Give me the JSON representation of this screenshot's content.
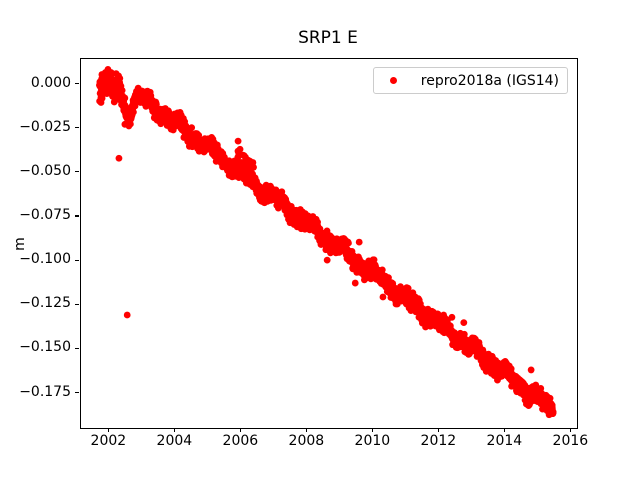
{
  "chart_data": {
    "type": "scatter",
    "title": "SRP1 E",
    "ylabel": "m",
    "xlabel": "",
    "grid": false,
    "legend_position": "upper right",
    "legend": [
      {
        "label": "repro2018a (IGS14)",
        "color": "#ff0000",
        "marker": "dot"
      }
    ],
    "xlim": [
      2001.14,
      2016.17
    ],
    "ylim": [
      -0.1945,
      0.0145
    ],
    "x_ticks": [
      {
        "v": 2002,
        "label": "2002"
      },
      {
        "v": 2004,
        "label": "2004"
      },
      {
        "v": 2006,
        "label": "2006"
      },
      {
        "v": 2008,
        "label": "2008"
      },
      {
        "v": 2010,
        "label": "2010"
      },
      {
        "v": 2012,
        "label": "2012"
      },
      {
        "v": 2014,
        "label": "2014"
      },
      {
        "v": 2016,
        "label": "2016"
      }
    ],
    "y_ticks": [
      {
        "v": 0.0,
        "label": "0.000"
      },
      {
        "v": -0.025,
        "label": "−0.025"
      },
      {
        "v": -0.05,
        "label": "−0.050"
      },
      {
        "v": -0.075,
        "label": "−0.075"
      },
      {
        "v": -0.1,
        "label": "−0.100"
      },
      {
        "v": -0.125,
        "label": "−0.125"
      },
      {
        "v": -0.15,
        "label": "−0.150"
      },
      {
        "v": -0.175,
        "label": "−0.175"
      }
    ],
    "series": {
      "name": "repro2018a (IGS14)",
      "color": "#ff0000",
      "marker_radius_px": 3.4,
      "t_start": 2001.7,
      "t_end": 2015.45,
      "sample_step_years": 0.004,
      "trend_anchors": [
        [
          2001.7,
          0.0
        ],
        [
          2002.0,
          -0.0015
        ],
        [
          2002.3,
          -0.004
        ],
        [
          2002.42,
          -0.01
        ],
        [
          2002.55,
          -0.0148
        ],
        [
          2002.65,
          -0.015
        ],
        [
          2002.75,
          -0.01
        ],
        [
          2002.85,
          -0.0055
        ],
        [
          2003.0,
          -0.0076
        ],
        [
          2003.5,
          -0.0147
        ],
        [
          2004.0,
          -0.0218
        ],
        [
          2004.5,
          -0.0289
        ],
        [
          2005.0,
          -0.036
        ],
        [
          2005.5,
          -0.0431
        ],
        [
          2006.0,
          -0.0502
        ],
        [
          2006.5,
          -0.0573
        ],
        [
          2007.0,
          -0.0644
        ],
        [
          2007.5,
          -0.0715
        ],
        [
          2008.0,
          -0.0786
        ],
        [
          2008.5,
          -0.0857
        ],
        [
          2009.0,
          -0.0928
        ],
        [
          2009.5,
          -0.0999
        ],
        [
          2010.0,
          -0.107
        ],
        [
          2010.5,
          -0.1141
        ],
        [
          2011.0,
          -0.1212
        ],
        [
          2011.5,
          -0.1283
        ],
        [
          2012.0,
          -0.1354
        ],
        [
          2012.5,
          -0.1425
        ],
        [
          2013.0,
          -0.1496
        ],
        [
          2013.5,
          -0.1567
        ],
        [
          2014.0,
          -0.1638
        ],
        [
          2014.5,
          -0.1709
        ],
        [
          2015.0,
          -0.178
        ],
        [
          2015.2,
          -0.1808
        ],
        [
          2015.45,
          -0.185
        ]
      ],
      "wiggles": [
        {
          "amp": 0.0022,
          "period": 1.0,
          "phase": 0.15
        },
        {
          "amp": 0.0013,
          "period": 0.45,
          "phase": 0.6
        }
      ],
      "noise_sigma": 0.0021,
      "start_noise": {
        "until": 2002.35,
        "sigma": 0.0035
      },
      "clusters": [
        {
          "t_start": 2005.86,
          "t_end": 2006.42,
          "count": 28,
          "offset_min": 0.002,
          "offset_max": 0.012
        }
      ],
      "outliers": [
        [
          2002.29,
          -0.0417
        ],
        [
          2002.47,
          -0.0225
        ],
        [
          2002.54,
          -0.1305
        ],
        [
          2005.9,
          -0.032
        ],
        [
          2005.96,
          -0.0366
        ],
        [
          2008.6,
          -0.0994
        ],
        [
          2009.45,
          -0.1124
        ],
        [
          2009.57,
          -0.0892
        ],
        [
          2010.29,
          -0.1203
        ],
        [
          2012.38,
          -0.1318
        ],
        [
          2012.74,
          -0.1348
        ],
        [
          2014.78,
          -0.1616
        ]
      ],
      "random_seed": 42
    }
  }
}
